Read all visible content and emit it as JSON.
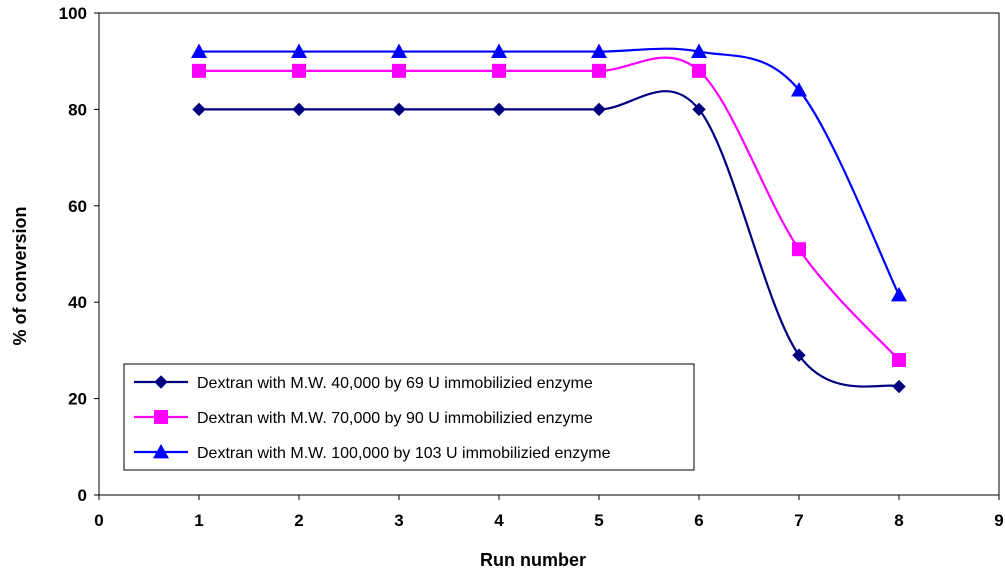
{
  "chart_data": {
    "type": "line",
    "title": "",
    "xlabel": "Run number",
    "ylabel": "% of conversion",
    "xlim": [
      0,
      9
    ],
    "ylim": [
      0,
      100
    ],
    "x_ticks": [
      "0",
      "1",
      "2",
      "3",
      "4",
      "5",
      "6",
      "7",
      "8",
      "9"
    ],
    "y_ticks": [
      "0",
      "20",
      "40",
      "60",
      "80",
      "100"
    ],
    "grid": false,
    "legend_position": "bottom-left",
    "smooth": true,
    "series": [
      {
        "name": "Dextran with M.W. 40,000 by 69 U immobilizied enzyme",
        "color": "#000080",
        "marker": "diamond",
        "x": [
          1,
          2,
          3,
          4,
          5,
          6,
          7,
          8
        ],
        "y": [
          80,
          80,
          80,
          80,
          80,
          80,
          29,
          22.5
        ]
      },
      {
        "name": "Dextran with M.W. 70,000 by 90 U  immobilizied enzyme",
        "color": "#FF00FF",
        "marker": "square",
        "x": [
          1,
          2,
          3,
          4,
          5,
          6,
          7,
          8
        ],
        "y": [
          88,
          88,
          88,
          88,
          88,
          88,
          51,
          28
        ]
      },
      {
        "name": "Dextran with M.W. 100,000 by 103 U  immobilizied enzyme",
        "color": "#0000FF",
        "marker": "triangle",
        "x": [
          1,
          2,
          3,
          4,
          5,
          6,
          7,
          8
        ],
        "y": [
          92,
          92,
          92,
          92,
          92,
          92,
          84,
          41.5
        ]
      }
    ]
  }
}
